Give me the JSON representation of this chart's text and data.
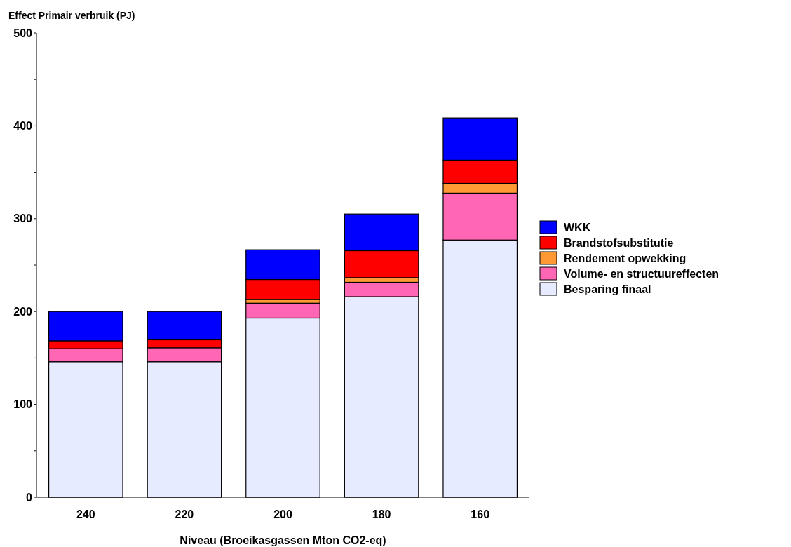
{
  "chart_data": {
    "type": "bar",
    "stacked": true,
    "title": "Effect Primair verbruik (PJ)",
    "xlabel": "Niveau (Broeikasgassen Mton CO2-eq)",
    "categories": [
      "240",
      "220",
      "200",
      "180",
      "160"
    ],
    "series": [
      {
        "name": "Besparing finaal",
        "color": "#e6ebff",
        "values": [
          146,
          146,
          193,
          216,
          277
        ]
      },
      {
        "name": "Volume- en structuureffecten",
        "color": "#ff66b3",
        "values": [
          14,
          15,
          16,
          15.5,
          50.5
        ]
      },
      {
        "name": "Rendement opwekking",
        "color": "#ff9933",
        "values": [
          0,
          0,
          4,
          5,
          10.5
        ]
      },
      {
        "name": "Brandstofsubstitutie",
        "color": "#ff0000",
        "values": [
          8.5,
          8.6,
          21.5,
          29,
          25
        ]
      },
      {
        "name": "WKK",
        "color": "#0000ff",
        "values": [
          31.5,
          30.4,
          32,
          39.5,
          45.5
        ]
      }
    ],
    "ylim": [
      0,
      500
    ],
    "yticks": [
      0,
      {
        "value": 50,
        "label": null
      },
      100,
      {
        "value": 150,
        "label": null
      },
      200,
      {
        "value": 250,
        "label": null
      },
      300,
      {
        "value": 350,
        "label": null
      },
      400,
      {
        "value": 450,
        "label": null
      },
      500
    ],
    "grid": false,
    "legend": "right"
  }
}
